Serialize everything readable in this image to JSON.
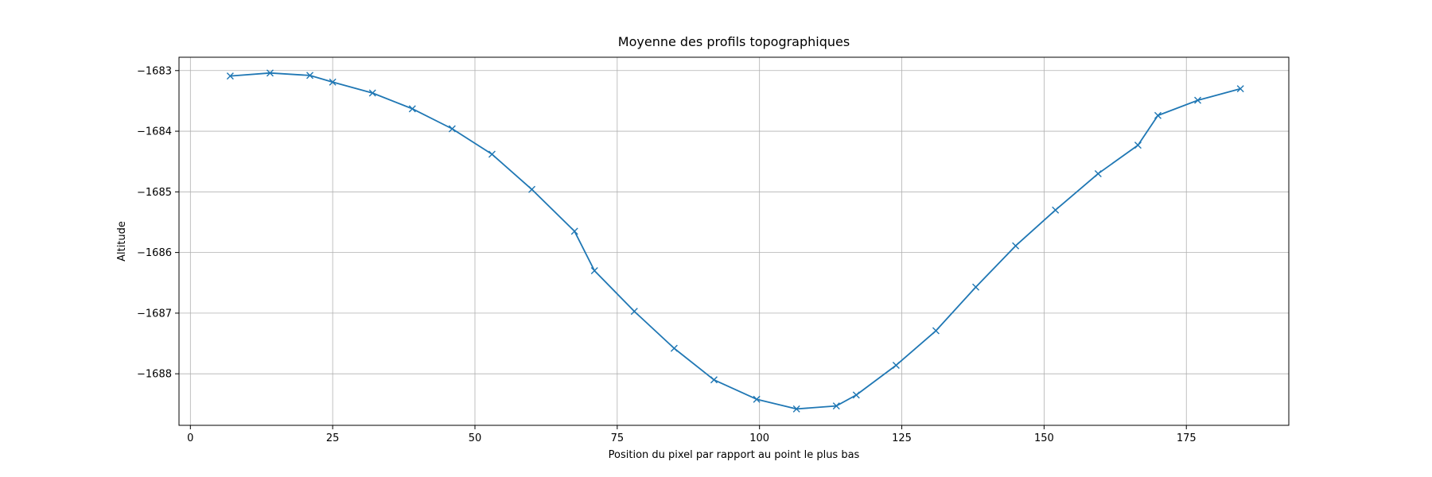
{
  "chart_data": {
    "type": "line",
    "title": "Moyenne des profils topographiques",
    "xlabel": "Position du pixel par rapport au point le plus bas",
    "ylabel": "Altitude",
    "xlim": [
      -2,
      193
    ],
    "ylim": [
      -1688.85,
      -1682.78
    ],
    "xticks": [
      0,
      25,
      50,
      75,
      100,
      125,
      150,
      175
    ],
    "yticks": [
      -1683,
      -1684,
      -1685,
      -1686,
      -1687,
      -1688
    ],
    "xtick_labels": [
      "0",
      "25",
      "50",
      "75",
      "100",
      "125",
      "150",
      "175"
    ],
    "ytick_labels": [
      "−1683",
      "−1684",
      "−1685",
      "−1686",
      "−1687",
      "−1688"
    ],
    "grid": true,
    "marker": "x",
    "color": "#1f77b4",
    "series": [
      {
        "x": [
          7,
          14,
          21,
          25,
          32,
          39,
          46,
          53,
          60,
          67.5,
          71,
          78,
          85,
          92,
          99.5,
          106.5,
          113.5,
          117,
          124,
          131,
          138,
          145,
          152,
          159.5,
          166.5,
          170,
          177,
          184.5
        ],
        "y": [
          -1683.09,
          -1683.04,
          -1683.08,
          -1683.19,
          -1683.37,
          -1683.63,
          -1683.96,
          -1684.38,
          -1684.96,
          -1685.65,
          -1686.3,
          -1686.97,
          -1687.58,
          -1688.1,
          -1688.42,
          -1688.58,
          -1688.53,
          -1688.35,
          -1687.86,
          -1687.29,
          -1686.57,
          -1685.89,
          -1685.3,
          -1684.7,
          -1684.23,
          -1683.74,
          -1683.49,
          -1683.3
        ]
      }
    ]
  }
}
